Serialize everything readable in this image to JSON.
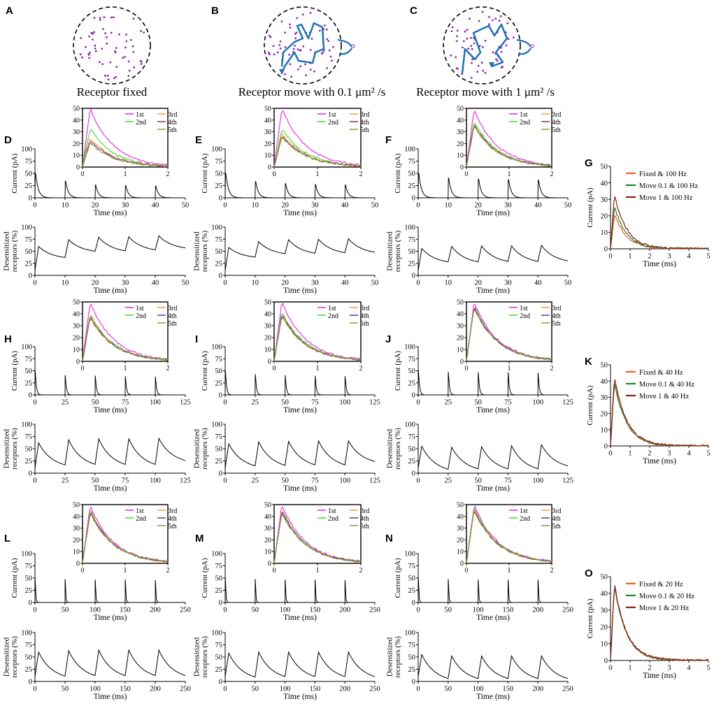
{
  "panel_labels": [
    "A",
    "B",
    "C",
    "D",
    "E",
    "F",
    "G",
    "H",
    "I",
    "J",
    "K",
    "L",
    "M",
    "N",
    "O"
  ],
  "captions": {
    "A": "Receptor fixed",
    "B": "Receptor move with 0.1 μm² /s",
    "C": "Receptor move with 1 μm² /s"
  },
  "colors": {
    "receptor_dot": "#8e24aa",
    "trajectory": "#1f6fb5",
    "trace": "#000000",
    "1st": "#ee22ee",
    "2nd": "#33dd33",
    "3rd": "#f0a030",
    "4th": "#7b2d8e",
    "5th": "#8a9a3a",
    "fixed": "#ff5a1f",
    "move01": "#1b8a2a",
    "move1": "#8b1a1a"
  },
  "chart_data": [
    {
      "id": "D",
      "type": "line",
      "xlabel": "Time (ms)",
      "ylabel": "Current (pA)",
      "xlim": [
        0,
        50
      ],
      "ylim": [
        0,
        100
      ],
      "xticks": [
        0,
        10,
        20,
        30,
        40,
        50
      ],
      "yticks": [
        0,
        25,
        50,
        75,
        100
      ],
      "period": 10,
      "peaks": [
        50,
        34,
        26,
        25,
        24
      ]
    },
    {
      "id": "D-inset",
      "type": "line",
      "xlim": [
        0,
        2
      ],
      "ylim": [
        0,
        50
      ],
      "xticks": [
        0,
        1,
        2
      ],
      "yticks": [
        0,
        10,
        20,
        30,
        40,
        50
      ],
      "legend": [
        "1st",
        "2nd",
        "3rd",
        "4th",
        "5th"
      ],
      "series": [
        {
          "name": "1st",
          "peak": 50
        },
        {
          "name": "2nd",
          "peak": 33
        },
        {
          "name": "3rd",
          "peak": 25
        },
        {
          "name": "4th",
          "peak": 23
        },
        {
          "name": "5th",
          "peak": 21
        }
      ]
    },
    {
      "id": "D-desens",
      "type": "line",
      "xlabel": "Time (ms)",
      "ylabel": "Desensitized receptors (%)",
      "xlim": [
        0,
        50
      ],
      "ylim": [
        0,
        100
      ],
      "xticks": [
        0,
        10,
        20,
        30,
        40,
        50
      ],
      "yticks": [
        0,
        25,
        50,
        75,
        100
      ],
      "period": 10,
      "peaks": [
        60,
        74,
        79,
        80,
        82
      ],
      "troughs": [
        37,
        50,
        51,
        53,
        57
      ]
    },
    {
      "id": "E",
      "type": "line",
      "xlabel": "Time (ms)",
      "ylabel": "Current (pA)",
      "xlim": [
        0,
        50
      ],
      "ylim": [
        0,
        100
      ],
      "xticks": [
        0,
        10,
        20,
        30,
        40,
        50
      ],
      "yticks": [
        0,
        25,
        50,
        75,
        100
      ],
      "period": 10,
      "peaks": [
        50,
        33,
        29,
        27,
        26
      ]
    },
    {
      "id": "E-inset",
      "type": "line",
      "xlim": [
        0,
        2
      ],
      "ylim": [
        0,
        50
      ],
      "xticks": [
        0,
        1,
        2
      ],
      "yticks": [
        0,
        10,
        20,
        30,
        40,
        50
      ],
      "legend": [
        "1st",
        "2nd",
        "3rd",
        "4th",
        "5th"
      ],
      "series": [
        {
          "name": "1st",
          "peak": 50
        },
        {
          "name": "2nd",
          "peak": 33
        },
        {
          "name": "3rd",
          "peak": 29
        },
        {
          "name": "4th",
          "peak": 27
        },
        {
          "name": "5th",
          "peak": 26
        }
      ]
    },
    {
      "id": "E-desens",
      "type": "line",
      "xlabel": "Time (ms)",
      "ylabel": "Desensitized receptors (%)",
      "xlim": [
        0,
        50
      ],
      "ylim": [
        0,
        100
      ],
      "xticks": [
        0,
        10,
        20,
        30,
        40,
        50
      ],
      "yticks": [
        0,
        25,
        50,
        75,
        100
      ],
      "period": 10,
      "peaks": [
        58,
        70,
        74,
        75,
        76
      ],
      "troughs": [
        38,
        45,
        46,
        47,
        48
      ]
    },
    {
      "id": "F",
      "type": "line",
      "xlabel": "Time (ms)",
      "ylabel": "Current (pA)",
      "xlim": [
        0,
        50
      ],
      "ylim": [
        0,
        100
      ],
      "xticks": [
        0,
        10,
        20,
        30,
        40,
        50
      ],
      "yticks": [
        0,
        25,
        50,
        75,
        100
      ],
      "period": 10,
      "peaks": [
        50,
        40,
        38,
        37,
        36
      ]
    },
    {
      "id": "F-inset",
      "type": "line",
      "xlim": [
        0,
        2
      ],
      "ylim": [
        0,
        50
      ],
      "xticks": [
        0,
        1,
        2
      ],
      "yticks": [
        0,
        10,
        20,
        30,
        40,
        50
      ],
      "legend": [
        "1st",
        "2nd",
        "3rd",
        "4th",
        "5th"
      ],
      "series": [
        {
          "name": "1st",
          "peak": 49
        },
        {
          "name": "2nd",
          "peak": 39
        },
        {
          "name": "3rd",
          "peak": 37
        },
        {
          "name": "4th",
          "peak": 36
        },
        {
          "name": "5th",
          "peak": 35
        }
      ]
    },
    {
      "id": "F-desens",
      "type": "line",
      "xlabel": "Time (ms)",
      "ylabel": "Desensitized receptors (%)",
      "xlim": [
        0,
        50
      ],
      "ylim": [
        0,
        100
      ],
      "xticks": [
        0,
        10,
        20,
        30,
        40,
        50
      ],
      "yticks": [
        0,
        25,
        50,
        75,
        100
      ],
      "period": 10,
      "peaks": [
        56,
        60,
        61,
        61,
        62
      ],
      "troughs": [
        28,
        28,
        29,
        29,
        30
      ]
    },
    {
      "id": "G",
      "type": "line",
      "xlabel": "Time (ms)",
      "ylabel": "Current (pA)",
      "xlim": [
        0,
        5
      ],
      "ylim": [
        0,
        50
      ],
      "xticks": [
        0,
        1,
        2,
        3,
        4,
        5
      ],
      "yticks": [
        0,
        10,
        20,
        30,
        40,
        50
      ],
      "legend": [
        "Fixed & 100 Hz",
        "Move 0.1 & 100 Hz",
        "Move 1 & 100 Hz"
      ],
      "series": [
        {
          "name": "Fixed & 100 Hz",
          "peak": 21
        },
        {
          "name": "Move 0.1 & 100 Hz",
          "peak": 26
        },
        {
          "name": "Move 1 & 100 Hz",
          "peak": 33
        }
      ]
    },
    {
      "id": "H",
      "type": "line",
      "xlabel": "Time (ms)",
      "ylabel": "Current (pA)",
      "xlim": [
        0,
        125
      ],
      "ylim": [
        0,
        100
      ],
      "xticks": [
        0,
        25,
        50,
        75,
        100,
        125
      ],
      "yticks": [
        0,
        25,
        50,
        75,
        100
      ],
      "period": 25,
      "peaks": [
        50,
        40,
        39,
        38,
        37
      ]
    },
    {
      "id": "H-inset",
      "type": "line",
      "xlim": [
        0,
        2
      ],
      "ylim": [
        0,
        50
      ],
      "xticks": [
        0,
        1,
        2
      ],
      "yticks": [
        0,
        10,
        20,
        30,
        40,
        50
      ],
      "legend": [
        "1st",
        "2nd",
        "3rd",
        "4th",
        "5th"
      ],
      "series": [
        {
          "name": "1st",
          "peak": 50
        },
        {
          "name": "2nd",
          "peak": 40
        },
        {
          "name": "3rd",
          "peak": 39
        },
        {
          "name": "4th",
          "peak": 38
        },
        {
          "name": "5th",
          "peak": 37
        }
      ]
    },
    {
      "id": "H-desens",
      "type": "line",
      "xlabel": "Time (ms)",
      "ylabel": "Desensitized receptors (%)",
      "xlim": [
        0,
        125
      ],
      "ylim": [
        0,
        100
      ],
      "xticks": [
        0,
        25,
        50,
        75,
        100,
        125
      ],
      "yticks": [
        0,
        25,
        50,
        75,
        100
      ],
      "period": 25,
      "peaks": [
        62,
        68,
        70,
        70,
        71
      ],
      "troughs": [
        17,
        18,
        18,
        18,
        26
      ]
    },
    {
      "id": "I",
      "type": "line",
      "xlabel": "Time (ms)",
      "ylabel": "Current (pA)",
      "xlim": [
        0,
        125
      ],
      "ylim": [
        0,
        100
      ],
      "xticks": [
        0,
        25,
        50,
        75,
        100,
        125
      ],
      "yticks": [
        0,
        25,
        50,
        75,
        100
      ],
      "period": 25,
      "peaks": [
        50,
        42,
        40,
        39,
        38
      ]
    },
    {
      "id": "I-inset",
      "type": "line",
      "xlim": [
        0,
        2
      ],
      "ylim": [
        0,
        50
      ],
      "xticks": [
        0,
        1,
        2
      ],
      "yticks": [
        0,
        10,
        20,
        30,
        40,
        50
      ],
      "legend": [
        "1st",
        "2nd",
        "3rd",
        "4th",
        "5th"
      ],
      "series": [
        {
          "name": "1st",
          "peak": 50
        },
        {
          "name": "2nd",
          "peak": 42
        },
        {
          "name": "3rd",
          "peak": 40
        },
        {
          "name": "4th",
          "peak": 39
        },
        {
          "name": "5th",
          "peak": 38
        }
      ]
    },
    {
      "id": "I-desens",
      "type": "line",
      "xlabel": "Time (ms)",
      "ylabel": "Desensitized receptors (%)",
      "xlim": [
        0,
        125
      ],
      "ylim": [
        0,
        100
      ],
      "xticks": [
        0,
        25,
        50,
        75,
        100,
        125
      ],
      "yticks": [
        0,
        25,
        50,
        75,
        100
      ],
      "period": 25,
      "peaks": [
        60,
        64,
        65,
        66,
        66
      ],
      "troughs": [
        15,
        16,
        17,
        17,
        24
      ]
    },
    {
      "id": "J",
      "type": "line",
      "xlabel": "Time (ms)",
      "ylabel": "Current (pA)",
      "xlim": [
        0,
        125
      ],
      "ylim": [
        0,
        100
      ],
      "xticks": [
        0,
        25,
        50,
        75,
        100,
        125
      ],
      "yticks": [
        0,
        25,
        50,
        75,
        100
      ],
      "period": 25,
      "peaks": [
        50,
        47,
        46,
        46,
        45
      ]
    },
    {
      "id": "J-inset",
      "type": "line",
      "xlim": [
        0,
        2
      ],
      "ylim": [
        0,
        50
      ],
      "xticks": [
        0,
        1,
        2
      ],
      "yticks": [
        0,
        10,
        20,
        30,
        40,
        50
      ],
      "legend": [
        "1st",
        "2nd",
        "3rd",
        "4th",
        "5th"
      ],
      "series": [
        {
          "name": "1st",
          "peak": 50
        },
        {
          "name": "2nd",
          "peak": 47
        },
        {
          "name": "3rd",
          "peak": 46
        },
        {
          "name": "4th",
          "peak": 46
        },
        {
          "name": "5th",
          "peak": 45
        }
      ]
    },
    {
      "id": "J-desens",
      "type": "line",
      "xlabel": "Time (ms)",
      "ylabel": "Desensitized receptors (%)",
      "xlim": [
        0,
        125
      ],
      "ylim": [
        0,
        100
      ],
      "xticks": [
        0,
        25,
        50,
        75,
        100,
        125
      ],
      "yticks": [
        0,
        25,
        50,
        75,
        100
      ],
      "period": 25,
      "peaks": [
        55,
        53,
        54,
        56,
        58
      ],
      "troughs": [
        8,
        9,
        9,
        9,
        15
      ]
    },
    {
      "id": "K",
      "type": "line",
      "xlabel": "Time (ms)",
      "ylabel": "Current (pA)",
      "xlim": [
        0,
        5
      ],
      "ylim": [
        0,
        50
      ],
      "xticks": [
        0,
        1,
        2,
        3,
        4,
        5
      ],
      "yticks": [
        0,
        10,
        20,
        30,
        40,
        50
      ],
      "legend": [
        "Fixed & 40 Hz",
        "Move 0.1 & 40 Hz",
        "Move 1 & 40 Hz"
      ],
      "series": [
        {
          "name": "Fixed & 40 Hz",
          "peak": 39
        },
        {
          "name": "Move 0.1 & 40 Hz",
          "peak": 40
        },
        {
          "name": "Move 1 & 40 Hz",
          "peak": 43
        }
      ]
    },
    {
      "id": "L",
      "type": "line",
      "xlabel": "Time (ms)",
      "ylabel": "Current (pA)",
      "xlim": [
        0,
        250
      ],
      "ylim": [
        0,
        100
      ],
      "xticks": [
        0,
        50,
        100,
        150,
        200,
        250
      ],
      "yticks": [
        0,
        25,
        50,
        75,
        100
      ],
      "period": 50,
      "peaks": [
        50,
        47,
        46,
        46,
        45
      ]
    },
    {
      "id": "L-inset",
      "type": "line",
      "xlim": [
        0,
        2
      ],
      "ylim": [
        0,
        50
      ],
      "xticks": [
        0,
        1,
        2
      ],
      "yticks": [
        0,
        10,
        20,
        30,
        40,
        50
      ],
      "legend": [
        "1st",
        "2nd",
        "3rd",
        "4th",
        "5th"
      ],
      "series": [
        {
          "name": "1st",
          "peak": 49
        },
        {
          "name": "2nd",
          "peak": 46
        },
        {
          "name": "3rd",
          "peak": 45
        },
        {
          "name": "4th",
          "peak": 44
        },
        {
          "name": "5th",
          "peak": 43
        }
      ]
    },
    {
      "id": "L-desens",
      "type": "line",
      "xlabel": "Time (ms)",
      "ylabel": "Desensitized receptors (%)",
      "xlim": [
        0,
        250
      ],
      "ylim": [
        0,
        100
      ],
      "xticks": [
        0,
        50,
        100,
        150,
        200,
        250
      ],
      "yticks": [
        0,
        25,
        50,
        75,
        100
      ],
      "period": 50,
      "peaks": [
        60,
        63,
        64,
        64,
        64
      ],
      "troughs": [
        11,
        12,
        12,
        12,
        12
      ]
    },
    {
      "id": "M",
      "type": "line",
      "xlabel": "Time (ms)",
      "ylabel": "Current (pA)",
      "xlim": [
        0,
        250
      ],
      "ylim": [
        0,
        100
      ],
      "xticks": [
        0,
        50,
        100,
        150,
        200,
        250
      ],
      "yticks": [
        0,
        25,
        50,
        75,
        100
      ],
      "period": 50,
      "peaks": [
        50,
        47,
        46,
        46,
        45
      ]
    },
    {
      "id": "M-inset",
      "type": "line",
      "xlim": [
        0,
        2
      ],
      "ylim": [
        0,
        50
      ],
      "xticks": [
        0,
        1,
        2
      ],
      "yticks": [
        0,
        10,
        20,
        30,
        40,
        50
      ],
      "legend": [
        "1st",
        "2nd",
        "3rd",
        "4th",
        "5th"
      ],
      "series": [
        {
          "name": "1st",
          "peak": 50
        },
        {
          "name": "2nd",
          "peak": 46
        },
        {
          "name": "3rd",
          "peak": 45
        },
        {
          "name": "4th",
          "peak": 44
        },
        {
          "name": "5th",
          "peak": 43
        }
      ]
    },
    {
      "id": "M-desens",
      "type": "line",
      "xlabel": "Time (ms)",
      "ylabel": "Desensitized receptors (%)",
      "xlim": [
        0,
        250
      ],
      "ylim": [
        0,
        100
      ],
      "xticks": [
        0,
        50,
        100,
        150,
        200,
        250
      ],
      "yticks": [
        0,
        25,
        50,
        75,
        100
      ],
      "period": 50,
      "peaks": [
        58,
        60,
        60,
        60,
        60
      ],
      "troughs": [
        9,
        10,
        10,
        10,
        10
      ]
    },
    {
      "id": "N",
      "type": "line",
      "xlabel": "Time (ms)",
      "ylabel": "Current (pA)",
      "xlim": [
        0,
        250
      ],
      "ylim": [
        0,
        100
      ],
      "xticks": [
        0,
        50,
        100,
        150,
        200,
        250
      ],
      "yticks": [
        0,
        25,
        50,
        75,
        100
      ],
      "period": 50,
      "peaks": [
        50,
        47,
        46,
        46,
        46
      ]
    },
    {
      "id": "N-inset",
      "type": "line",
      "xlim": [
        0,
        2
      ],
      "ylim": [
        0,
        50
      ],
      "xticks": [
        0,
        1,
        2
      ],
      "yticks": [
        0,
        10,
        20,
        30,
        40,
        50
      ],
      "legend": [
        "1st",
        "2nd",
        "3rd",
        "4th",
        "5th"
      ],
      "series": [
        {
          "name": "1st",
          "peak": 50
        },
        {
          "name": "2nd",
          "peak": 48
        },
        {
          "name": "3rd",
          "peak": 47
        },
        {
          "name": "4th",
          "peak": 46
        },
        {
          "name": "5th",
          "peak": 45
        }
      ]
    },
    {
      "id": "N-desens",
      "type": "line",
      "xlabel": "Time (ms)",
      "ylabel": "Desensitized receptors (%)",
      "xlim": [
        0,
        250
      ],
      "ylim": [
        0,
        100
      ],
      "xticks": [
        0,
        50,
        100,
        150,
        200,
        250
      ],
      "yticks": [
        0,
        25,
        50,
        75,
        100
      ],
      "period": 50,
      "peaks": [
        55,
        52,
        52,
        52,
        52
      ],
      "troughs": [
        6,
        6,
        6,
        6,
        6
      ]
    },
    {
      "id": "O",
      "type": "line",
      "xlabel": "Time (ms)",
      "ylabel": "Current (pA)",
      "xlim": [
        0,
        5
      ],
      "ylim": [
        0,
        50
      ],
      "xticks": [
        0,
        1,
        2,
        3,
        4,
        5
      ],
      "yticks": [
        0,
        10,
        20,
        30,
        40,
        50
      ],
      "legend": [
        "Fixed & 20 Hz",
        "Move 0.1 & 20 Hz",
        "Move 1 & 20 Hz"
      ],
      "series": [
        {
          "name": "Fixed & 20 Hz",
          "peak": 45
        },
        {
          "name": "Move 0.1 & 20 Hz",
          "peak": 45
        },
        {
          "name": "Move 1 & 20 Hz",
          "peak": 46
        }
      ]
    }
  ]
}
